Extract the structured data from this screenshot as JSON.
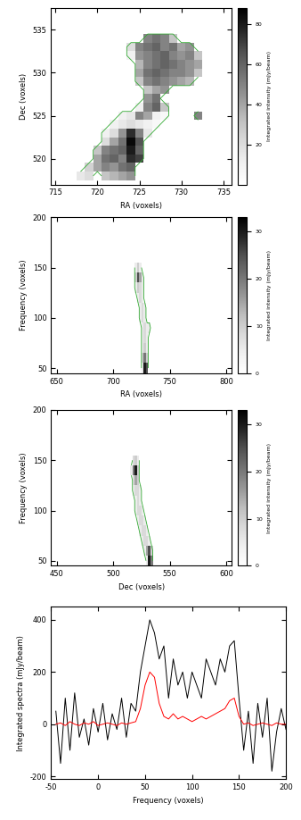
{
  "chart_data": [
    {
      "type": "heatmap",
      "x": [
        718,
        719,
        720,
        721,
        722,
        723,
        724,
        725,
        726,
        727,
        728,
        729,
        730,
        731,
        732
      ],
      "y": [
        518,
        519,
        520,
        521,
        522,
        523,
        524,
        525,
        526,
        527,
        528,
        529,
        530,
        531,
        532,
        533,
        534,
        535
      ],
      "cells": [
        [
          15,
          20,
          0,
          30,
          35,
          40,
          45,
          0,
          0,
          0,
          0,
          0,
          0,
          0,
          0
        ],
        [
          0,
          25,
          40,
          50,
          45,
          55,
          60,
          0,
          0,
          0,
          0,
          0,
          0,
          0,
          0
        ],
        [
          0,
          0,
          40,
          55,
          60,
          50,
          75,
          70,
          0,
          0,
          0,
          0,
          0,
          0,
          0
        ],
        [
          0,
          0,
          30,
          50,
          55,
          60,
          80,
          60,
          0,
          0,
          0,
          0,
          0,
          0,
          0
        ],
        [
          0,
          0,
          0,
          20,
          40,
          55,
          85,
          65,
          0,
          0,
          0,
          0,
          0,
          0,
          0
        ],
        [
          0,
          0,
          0,
          10,
          20,
          45,
          75,
          50,
          15,
          0,
          0,
          0,
          0,
          0,
          0
        ],
        [
          0,
          0,
          0,
          0,
          10,
          15,
          20,
          15,
          10,
          5,
          0,
          0,
          0,
          0,
          0
        ],
        [
          0,
          0,
          0,
          0,
          0,
          10,
          15,
          50,
          40,
          10,
          5,
          0,
          0,
          0,
          50
        ],
        [
          0,
          0,
          0,
          0,
          0,
          0,
          0,
          10,
          50,
          60,
          30,
          0,
          0,
          0,
          0
        ],
        [
          0,
          0,
          0,
          0,
          0,
          0,
          0,
          0,
          45,
          55,
          0,
          0,
          0,
          0,
          0
        ],
        [
          0,
          0,
          0,
          0,
          0,
          0,
          0,
          0,
          30,
          40,
          45,
          0,
          0,
          0,
          0
        ],
        [
          0,
          0,
          0,
          0,
          0,
          0,
          0,
          30,
          50,
          55,
          50,
          45,
          40,
          35,
          0
        ],
        [
          0,
          0,
          0,
          0,
          0,
          0,
          0,
          40,
          55,
          60,
          55,
          50,
          50,
          45,
          30
        ],
        [
          0,
          0,
          0,
          0,
          0,
          0,
          0,
          35,
          50,
          55,
          60,
          55,
          50,
          45,
          40
        ],
        [
          0,
          0,
          0,
          0,
          0,
          0,
          10,
          45,
          50,
          55,
          60,
          50,
          45,
          50,
          30
        ],
        [
          0,
          0,
          0,
          0,
          0,
          0,
          20,
          50,
          55,
          60,
          50,
          55,
          40,
          45,
          0
        ],
        [
          0,
          0,
          0,
          0,
          0,
          0,
          0,
          0,
          50,
          55,
          50,
          30,
          0,
          0,
          0
        ],
        [
          0,
          0,
          0,
          0,
          0,
          0,
          0,
          0,
          0,
          0,
          0,
          0,
          0,
          0,
          0
        ]
      ],
      "xlim": [
        714.5,
        736
      ],
      "ylim": [
        517,
        537.5
      ],
      "xticks": [
        715,
        720,
        725,
        730,
        735
      ],
      "yticks": [
        520,
        525,
        530,
        535
      ],
      "x_label": "RA (voxels)",
      "y_label": "Dec (voxels)",
      "colorbar_label": "Integrated intensity (mJy/beam)",
      "colorbar_range": [
        0,
        88
      ],
      "colorbar_ticks": [
        20,
        40,
        60,
        80
      ]
    },
    {
      "type": "heatmap",
      "x": [
        718,
        720,
        722,
        724,
        726,
        728,
        730,
        732,
        734
      ],
      "y": [
        50,
        60,
        70,
        80,
        90,
        100,
        110,
        120,
        130,
        140,
        150
      ],
      "cells": [
        [
          0,
          0,
          0,
          0,
          5,
          30,
          25,
          0,
          0
        ],
        [
          0,
          0,
          0,
          0,
          10,
          20,
          10,
          0,
          0
        ],
        [
          0,
          0,
          0,
          0,
          5,
          10,
          5,
          0,
          0
        ],
        [
          0,
          0,
          0,
          0,
          5,
          8,
          5,
          0,
          0
        ],
        [
          0,
          0,
          0,
          0,
          5,
          8,
          5,
          5,
          0
        ],
        [
          0,
          0,
          0,
          5,
          8,
          5,
          0,
          0,
          0
        ],
        [
          0,
          0,
          0,
          5,
          8,
          5,
          0,
          0,
          0
        ],
        [
          0,
          0,
          5,
          8,
          5,
          0,
          0,
          0,
          0
        ],
        [
          0,
          5,
          10,
          8,
          5,
          0,
          0,
          0,
          0
        ],
        [
          0,
          10,
          25,
          15,
          5,
          0,
          0,
          0,
          0
        ],
        [
          0,
          5,
          10,
          5,
          0,
          0,
          0,
          0,
          0
        ]
      ],
      "xlim": [
        645,
        805
      ],
      "ylim": [
        45,
        200
      ],
      "xticks": [
        650,
        700,
        750,
        800
      ],
      "yticks": [
        50,
        100,
        150,
        200
      ],
      "x_label": "RA (voxels)",
      "y_label": "Frequency (voxels)",
      "colorbar_label": "Integrated intensity (mJy/beam)",
      "colorbar_range": [
        0,
        33
      ],
      "colorbar_ticks": [
        0,
        10,
        20,
        30
      ]
    },
    {
      "type": "heatmap",
      "x": [
        516,
        518,
        520,
        522,
        524,
        526,
        528,
        530,
        532,
        534,
        536
      ],
      "y": [
        50,
        60,
        70,
        80,
        90,
        100,
        110,
        120,
        130,
        140,
        150
      ],
      "cells": [
        [
          0,
          0,
          0,
          0,
          0,
          0,
          0,
          5,
          30,
          20,
          0
        ],
        [
          0,
          0,
          0,
          0,
          0,
          0,
          5,
          15,
          25,
          10,
          0
        ],
        [
          0,
          0,
          0,
          0,
          0,
          5,
          8,
          8,
          5,
          0,
          0
        ],
        [
          0,
          0,
          0,
          0,
          5,
          8,
          8,
          5,
          0,
          0,
          0
        ],
        [
          0,
          0,
          0,
          5,
          8,
          8,
          5,
          0,
          0,
          0,
          0
        ],
        [
          0,
          0,
          5,
          8,
          8,
          5,
          0,
          0,
          0,
          0,
          0
        ],
        [
          0,
          0,
          5,
          8,
          5,
          0,
          0,
          0,
          0,
          0,
          0
        ],
        [
          0,
          5,
          8,
          8,
          5,
          0,
          0,
          0,
          0,
          0,
          0
        ],
        [
          0,
          8,
          15,
          10,
          0,
          0,
          0,
          0,
          0,
          0,
          0
        ],
        [
          5,
          20,
          30,
          10,
          0,
          0,
          0,
          0,
          0,
          0,
          0
        ],
        [
          0,
          8,
          10,
          5,
          0,
          0,
          0,
          0,
          0,
          0,
          0
        ]
      ],
      "xlim": [
        445,
        605
      ],
      "ylim": [
        45,
        200
      ],
      "xticks": [
        450,
        500,
        550,
        600
      ],
      "yticks": [
        50,
        100,
        150,
        200
      ],
      "x_label": "Dec (voxels)",
      "y_label": "Frequency (voxels)",
      "colorbar_label": "Integrated intensity (mJy/beam)",
      "colorbar_range": [
        0,
        33
      ],
      "colorbar_ticks": [
        0,
        10,
        20,
        30
      ]
    },
    {
      "type": "line",
      "x": [
        -45,
        -40,
        -35,
        -30,
        -25,
        -20,
        -15,
        -10,
        -5,
        0,
        5,
        10,
        15,
        20,
        25,
        30,
        35,
        40,
        45,
        50,
        55,
        60,
        65,
        70,
        75,
        80,
        85,
        90,
        95,
        100,
        105,
        110,
        115,
        120,
        125,
        130,
        135,
        140,
        145,
        150,
        155,
        160,
        165,
        170,
        175,
        180,
        185,
        190,
        195,
        200
      ],
      "series": [
        {
          "color": "#000000",
          "values": [
            50,
            -150,
            100,
            -100,
            120,
            -50,
            20,
            -80,
            60,
            -30,
            80,
            -60,
            40,
            -20,
            100,
            -50,
            80,
            50,
            200,
            300,
            400,
            350,
            250,
            300,
            100,
            250,
            150,
            200,
            100,
            200,
            150,
            100,
            250,
            200,
            150,
            250,
            200,
            300,
            320,
            100,
            -100,
            50,
            -150,
            80,
            -50,
            100,
            -180,
            -30,
            60,
            -20
          ]
        },
        {
          "color": "#ff0000",
          "values": [
            0,
            5,
            -5,
            10,
            0,
            -5,
            5,
            0,
            10,
            -5,
            0,
            5,
            0,
            -5,
            5,
            0,
            5,
            10,
            60,
            150,
            200,
            180,
            80,
            30,
            20,
            40,
            20,
            30,
            20,
            10,
            20,
            30,
            20,
            30,
            40,
            50,
            60,
            90,
            100,
            30,
            0,
            5,
            -5,
            0,
            5,
            0,
            -5,
            5,
            0,
            0
          ]
        }
      ],
      "xlim": [
        -50,
        200
      ],
      "ylim": [
        -210,
        450
      ],
      "xticks": [
        -50,
        0,
        50,
        100,
        150,
        200
      ],
      "yticks": [
        -200,
        0,
        200,
        400
      ],
      "x_label": "Frequency (voxels)",
      "y_label": "Integrated spectra (mJy/beam)"
    }
  ]
}
